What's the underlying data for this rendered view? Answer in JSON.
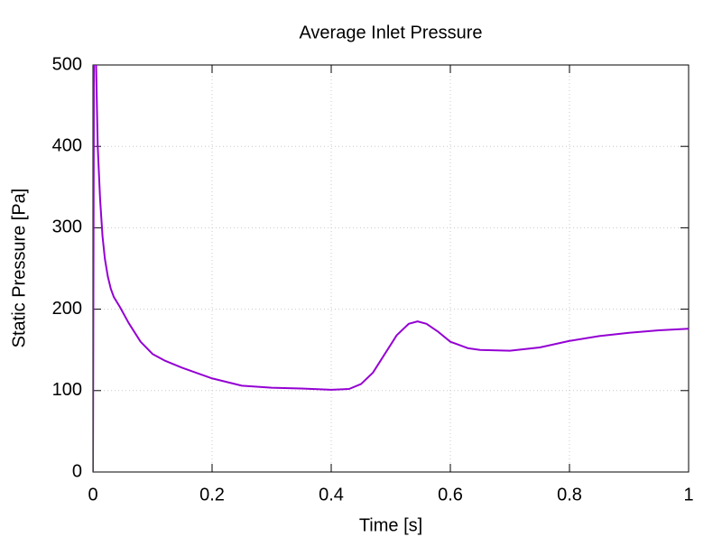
{
  "chart_data": {
    "type": "line",
    "title": "Average Inlet Pressure",
    "x_label": "Time [s]",
    "y_label": "Static Pressure [Pa]",
    "x": [
      0,
      0.002,
      0.005,
      0.008,
      0.012,
      0.016,
      0.02,
      0.025,
      0.03,
      0.035,
      0.045,
      0.06,
      0.08,
      0.1,
      0.12,
      0.15,
      0.2,
      0.25,
      0.3,
      0.35,
      0.4,
      0.43,
      0.45,
      0.47,
      0.49,
      0.51,
      0.53,
      0.545,
      0.56,
      0.58,
      0.6,
      0.63,
      0.65,
      0.7,
      0.75,
      0.8,
      0.85,
      0.9,
      0.95,
      1
    ],
    "series": [
      {
        "name": "Average Inlet Pressure",
        "color": "#9400d3",
        "values": [
          0,
          600,
          510,
          400,
          335,
          290,
          262,
          240,
          225,
          215,
          203,
          183,
          160,
          145,
          137,
          128,
          115,
          106,
          103.5,
          102.5,
          101,
          102,
          108,
          122,
          145,
          168,
          182,
          185,
          182,
          172,
          160,
          152,
          150,
          149,
          153,
          161,
          167,
          171,
          174,
          176
        ]
      }
    ],
    "xlim": [
      0,
      1
    ],
    "ylim": [
      0,
      500
    ],
    "xticks": [
      0,
      0.2,
      0.4,
      0.6,
      0.8,
      1
    ],
    "yticks": [
      0,
      100,
      200,
      300,
      400,
      500
    ],
    "grid": true
  }
}
